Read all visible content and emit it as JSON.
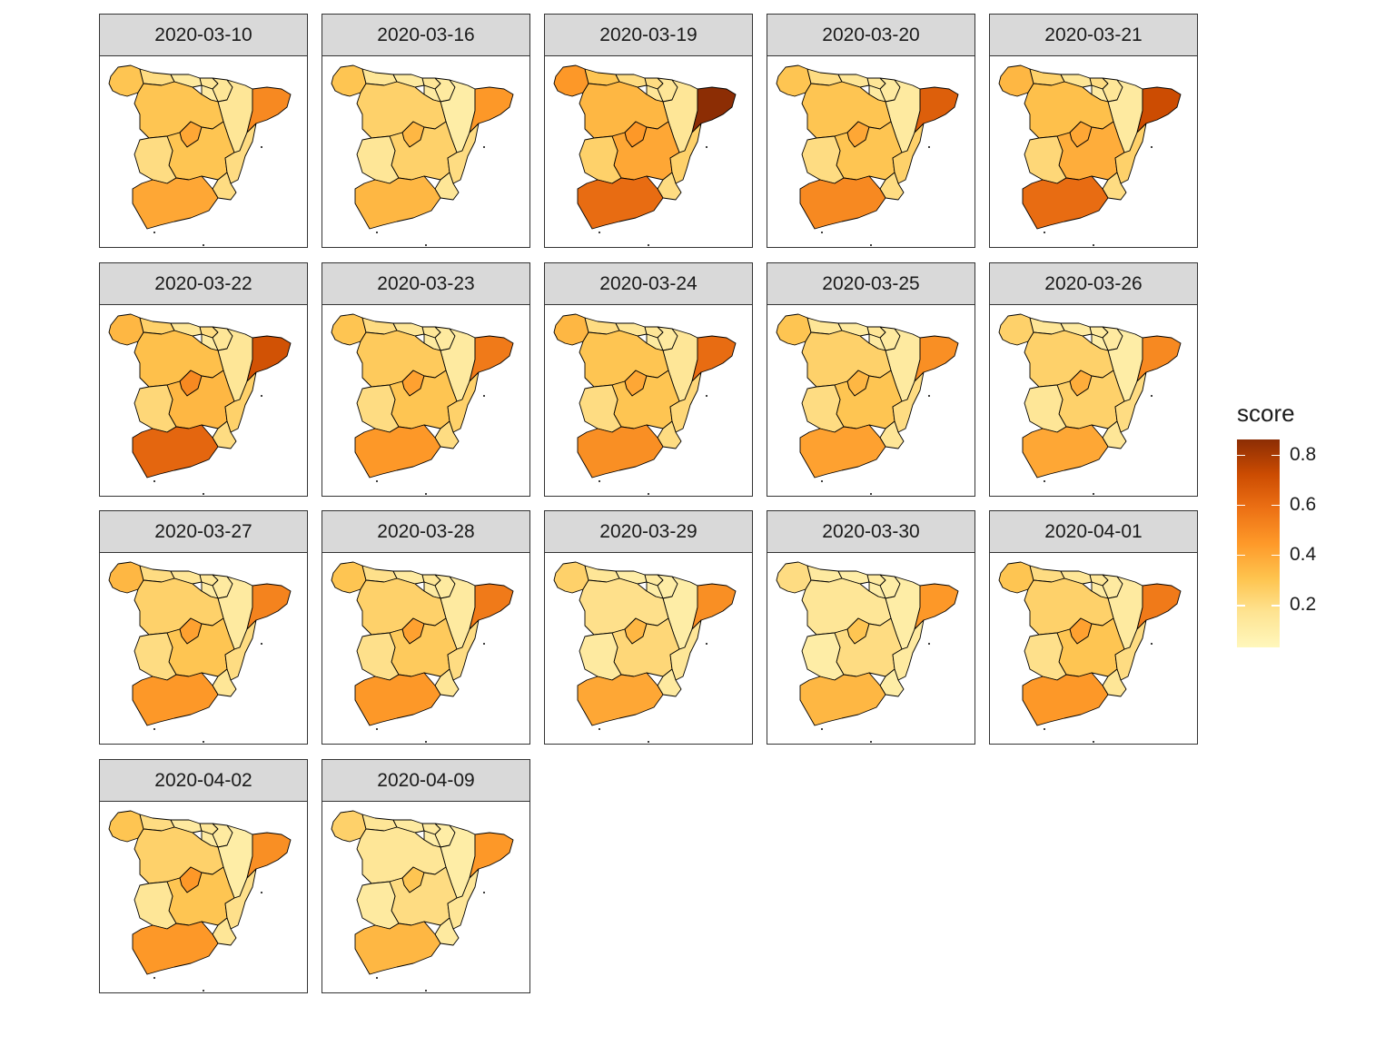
{
  "chart_data": {
    "type": "choropleth-small-multiples",
    "region": "Spain",
    "facet_variable": "date",
    "fill_variable": "score",
    "legend": {
      "title": "score",
      "ticks": [
        0.2,
        0.4,
        0.6,
        0.8
      ],
      "tick_labels": [
        "0.2",
        "0.4",
        "0.6",
        "0.8"
      ],
      "range": [
        0.03,
        0.86
      ],
      "colors": [
        "#fff7bc",
        "#fee391",
        "#fec44f",
        "#fe9929",
        "#ec7014",
        "#cc4c02",
        "#8c2d04"
      ]
    },
    "regions": [
      "Galicia",
      "Asturias",
      "Cantabria",
      "Pais Vasco",
      "Navarra",
      "La Rioja",
      "Aragon",
      "Cataluna",
      "Castilla y Leon",
      "Madrid",
      "Castilla-La Mancha",
      "Extremadura",
      "Comunitat Valenciana",
      "Murcia",
      "Andalucia"
    ],
    "facets": [
      {
        "date": "2020-03-10",
        "scores": [
          0.3,
          0.2,
          0.12,
          0.15,
          0.15,
          0.12,
          0.15,
          0.5,
          0.3,
          0.4,
          0.3,
          0.2,
          0.2,
          0.2,
          0.4
        ]
      },
      {
        "date": "2020-03-16",
        "scores": [
          0.3,
          0.15,
          0.12,
          0.15,
          0.12,
          0.12,
          0.1,
          0.45,
          0.25,
          0.35,
          0.25,
          0.15,
          0.2,
          0.15,
          0.35
        ]
      },
      {
        "date": "2020-03-19",
        "scores": [
          0.45,
          0.3,
          0.2,
          0.2,
          0.15,
          0.15,
          0.15,
          0.86,
          0.35,
          0.45,
          0.4,
          0.25,
          0.25,
          0.2,
          0.6
        ]
      },
      {
        "date": "2020-03-20",
        "scores": [
          0.3,
          0.2,
          0.15,
          0.15,
          0.12,
          0.12,
          0.12,
          0.65,
          0.3,
          0.4,
          0.3,
          0.2,
          0.25,
          0.2,
          0.5
        ]
      },
      {
        "date": "2020-03-21",
        "scores": [
          0.35,
          0.25,
          0.15,
          0.2,
          0.15,
          0.12,
          0.12,
          0.72,
          0.32,
          0.4,
          0.38,
          0.22,
          0.25,
          0.2,
          0.6
        ]
      },
      {
        "date": "2020-03-22",
        "scores": [
          0.35,
          0.25,
          0.15,
          0.2,
          0.15,
          0.12,
          0.15,
          0.7,
          0.32,
          0.5,
          0.35,
          0.22,
          0.25,
          0.2,
          0.62
        ]
      },
      {
        "date": "2020-03-23",
        "scores": [
          0.3,
          0.2,
          0.15,
          0.15,
          0.12,
          0.12,
          0.12,
          0.55,
          0.28,
          0.42,
          0.3,
          0.2,
          0.25,
          0.2,
          0.45
        ]
      },
      {
        "date": "2020-03-24",
        "scores": [
          0.35,
          0.2,
          0.15,
          0.15,
          0.12,
          0.12,
          0.15,
          0.6,
          0.3,
          0.4,
          0.3,
          0.2,
          0.22,
          0.2,
          0.48
        ]
      },
      {
        "date": "2020-03-25",
        "scores": [
          0.3,
          0.15,
          0.12,
          0.15,
          0.12,
          0.12,
          0.12,
          0.48,
          0.25,
          0.35,
          0.3,
          0.2,
          0.2,
          0.15,
          0.42
        ]
      },
      {
        "date": "2020-03-26",
        "scores": [
          0.25,
          0.15,
          0.12,
          0.12,
          0.12,
          0.1,
          0.1,
          0.5,
          0.25,
          0.38,
          0.25,
          0.15,
          0.2,
          0.15,
          0.4
        ]
      },
      {
        "date": "2020-03-27",
        "scores": [
          0.35,
          0.2,
          0.15,
          0.15,
          0.12,
          0.12,
          0.12,
          0.52,
          0.25,
          0.42,
          0.3,
          0.2,
          0.2,
          0.15,
          0.45
        ]
      },
      {
        "date": "2020-03-28",
        "scores": [
          0.3,
          0.18,
          0.12,
          0.15,
          0.12,
          0.12,
          0.12,
          0.55,
          0.25,
          0.42,
          0.28,
          0.18,
          0.2,
          0.15,
          0.45
        ]
      },
      {
        "date": "2020-03-29",
        "scores": [
          0.25,
          0.15,
          0.1,
          0.12,
          0.1,
          0.1,
          0.1,
          0.48,
          0.18,
          0.35,
          0.22,
          0.12,
          0.15,
          0.12,
          0.4
        ]
      },
      {
        "date": "2020-03-30",
        "scores": [
          0.2,
          0.12,
          0.1,
          0.12,
          0.1,
          0.1,
          0.1,
          0.45,
          0.15,
          0.3,
          0.2,
          0.1,
          0.12,
          0.1,
          0.35
        ]
      },
      {
        "date": "2020-04-01",
        "scores": [
          0.3,
          0.2,
          0.15,
          0.15,
          0.12,
          0.12,
          0.12,
          0.55,
          0.25,
          0.42,
          0.3,
          0.18,
          0.2,
          0.15,
          0.45
        ]
      },
      {
        "date": "2020-04-02",
        "scores": [
          0.3,
          0.2,
          0.12,
          0.15,
          0.12,
          0.12,
          0.1,
          0.48,
          0.25,
          0.45,
          0.3,
          0.15,
          0.18,
          0.15,
          0.45
        ]
      },
      {
        "date": "2020-04-09",
        "scores": [
          0.25,
          0.15,
          0.12,
          0.12,
          0.1,
          0.1,
          0.1,
          0.45,
          0.15,
          0.3,
          0.2,
          0.12,
          0.15,
          0.12,
          0.35
        ]
      }
    ]
  }
}
